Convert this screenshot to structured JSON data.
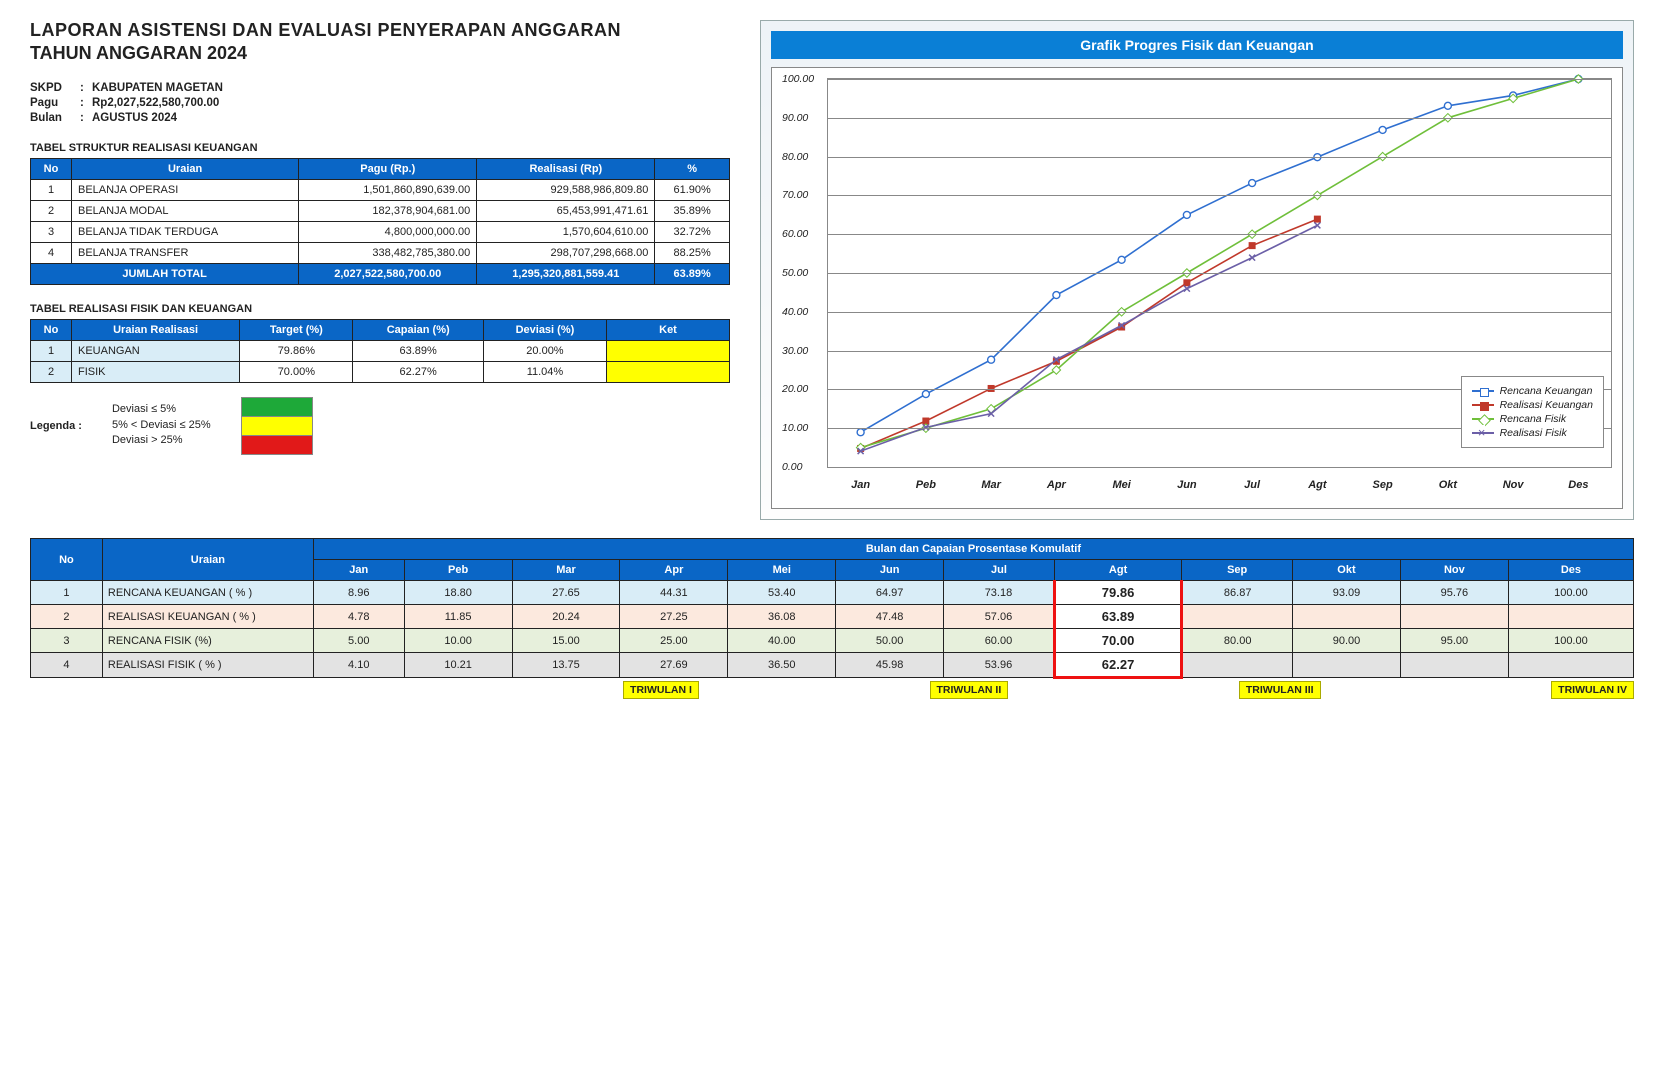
{
  "title_line1": "LAPORAN ASISTENSI DAN EVALUASI PENYERAPAN ANGGARAN",
  "title_line2": "TAHUN ANGGARAN 2024",
  "info": {
    "skpd_label": "SKPD",
    "skpd": "KABUPATEN MAGETAN",
    "pagu_label": "Pagu",
    "pagu": "Rp2,027,522,580,700.00",
    "bulan_label": "Bulan",
    "bulan": "AGUSTUS 2024"
  },
  "tbl1": {
    "caption": "TABEL STRUKTUR REALISASI KEUANGAN",
    "headers": [
      "No",
      "Uraian",
      "Pagu (Rp.)",
      "Realisasi (Rp)",
      "%"
    ],
    "rows": [
      [
        "1",
        "BELANJA OPERASI",
        "1,501,860,890,639.00",
        "929,588,986,809.80",
        "61.90%"
      ],
      [
        "2",
        "BELANJA MODAL",
        "182,378,904,681.00",
        "65,453,991,471.61",
        "35.89%"
      ],
      [
        "3",
        "BELANJA TIDAK TERDUGA",
        "4,800,000,000.00",
        "1,570,604,610.00",
        "32.72%"
      ],
      [
        "4",
        "BELANJA TRANSFER",
        "338,482,785,380.00",
        "298,707,298,668.00",
        "88.25%"
      ]
    ],
    "total": [
      "",
      "JUMLAH TOTAL",
      "2,027,522,580,700.00",
      "1,295,320,881,559.41",
      "63.89%"
    ]
  },
  "tbl2": {
    "caption": "TABEL REALISASI FISIK DAN KEUANGAN",
    "headers": [
      "No",
      "Uraian Realisasi",
      "Target (%)",
      "Capaian (%)",
      "Deviasi (%)",
      "Ket"
    ],
    "rows": [
      [
        "1",
        "KEUANGAN",
        "79.86%",
        "63.89%",
        "20.00%",
        ""
      ],
      [
        "2",
        "FISIK",
        "70.00%",
        "62.27%",
        "11.04%",
        ""
      ]
    ]
  },
  "legend": {
    "title": "Legenda :",
    "rows": [
      "Deviasi ≤ 5%",
      "5% < Deviasi ≤ 25%",
      "Deviasi > 25%"
    ],
    "colors": [
      "#1ea939",
      "#ffff00",
      "#e11919"
    ]
  },
  "chart": {
    "title": "Grafik Progres Fisik dan Keuangan",
    "months": [
      "Jan",
      "Peb",
      "Mar",
      "Apr",
      "Mei",
      "Jun",
      "Jul",
      "Agt",
      "Sep",
      "Okt",
      "Nov",
      "Des"
    ],
    "ylim": [
      0,
      100
    ],
    "ytick_step": 10,
    "series": [
      {
        "name": "Rencana Keuangan",
        "color": "#2f6fd0",
        "marker": "circle",
        "dash": "",
        "data": [
          8.96,
          18.8,
          27.65,
          44.31,
          53.4,
          64.97,
          73.18,
          79.86,
          86.87,
          93.09,
          95.76,
          100.0
        ]
      },
      {
        "name": "Realisasi Keuangan",
        "color": "#c0392b",
        "marker": "square",
        "dash": "",
        "data": [
          4.78,
          11.85,
          20.24,
          27.25,
          36.08,
          47.48,
          57.06,
          63.89,
          null,
          null,
          null,
          null
        ]
      },
      {
        "name": "Rencana Fisik",
        "color": "#6fbf3a",
        "marker": "diamond",
        "dash": "",
        "data": [
          5.0,
          10.0,
          15.0,
          25.0,
          40.0,
          50.0,
          60.0,
          70.0,
          80.0,
          90.0,
          95.0,
          100.0
        ]
      },
      {
        "name": "Realisasi Fisik",
        "color": "#6b5fa7",
        "marker": "x",
        "dash": "",
        "data": [
          4.1,
          10.21,
          13.75,
          27.69,
          36.5,
          45.98,
          53.96,
          62.27,
          null,
          null,
          null,
          null
        ]
      }
    ]
  },
  "monthly": {
    "header_top": [
      "No",
      "Uraian",
      "Bulan dan Capaian Prosentase Komulatif"
    ],
    "months": [
      "Jan",
      "Peb",
      "Mar",
      "Apr",
      "Mei",
      "Jun",
      "Jul",
      "Agt",
      "Sep",
      "Okt",
      "Nov",
      "Des"
    ],
    "highlight_month_index": 7,
    "rows": [
      {
        "no": "1",
        "label": "RENCANA KEUANGAN ( % )",
        "cls": "r1",
        "vals": [
          "8.96",
          "18.80",
          "27.65",
          "44.31",
          "53.40",
          "64.97",
          "73.18",
          "79.86",
          "86.87",
          "93.09",
          "95.76",
          "100.00"
        ]
      },
      {
        "no": "2",
        "label": "REALISASI KEUANGAN ( % )",
        "cls": "r2",
        "vals": [
          "4.78",
          "11.85",
          "20.24",
          "27.25",
          "36.08",
          "47.48",
          "57.06",
          "63.89",
          "",
          "",
          "",
          ""
        ]
      },
      {
        "no": "3",
        "label": "RENCANA FISIK (%)",
        "cls": "r3",
        "vals": [
          "5.00",
          "10.00",
          "15.00",
          "25.00",
          "40.00",
          "50.00",
          "60.00",
          "70.00",
          "80.00",
          "90.00",
          "95.00",
          "100.00"
        ]
      },
      {
        "no": "4",
        "label": "REALISASI FISIK ( % )",
        "cls": "r4",
        "vals": [
          "4.10",
          "10.21",
          "13.75",
          "27.69",
          "36.50",
          "45.98",
          "53.96",
          "62.27",
          "",
          "",
          "",
          ""
        ]
      }
    ],
    "triwulan": [
      "TRIWULAN I",
      "TRIWULAN II",
      "TRIWULAN III",
      "TRIWULAN IV"
    ]
  }
}
